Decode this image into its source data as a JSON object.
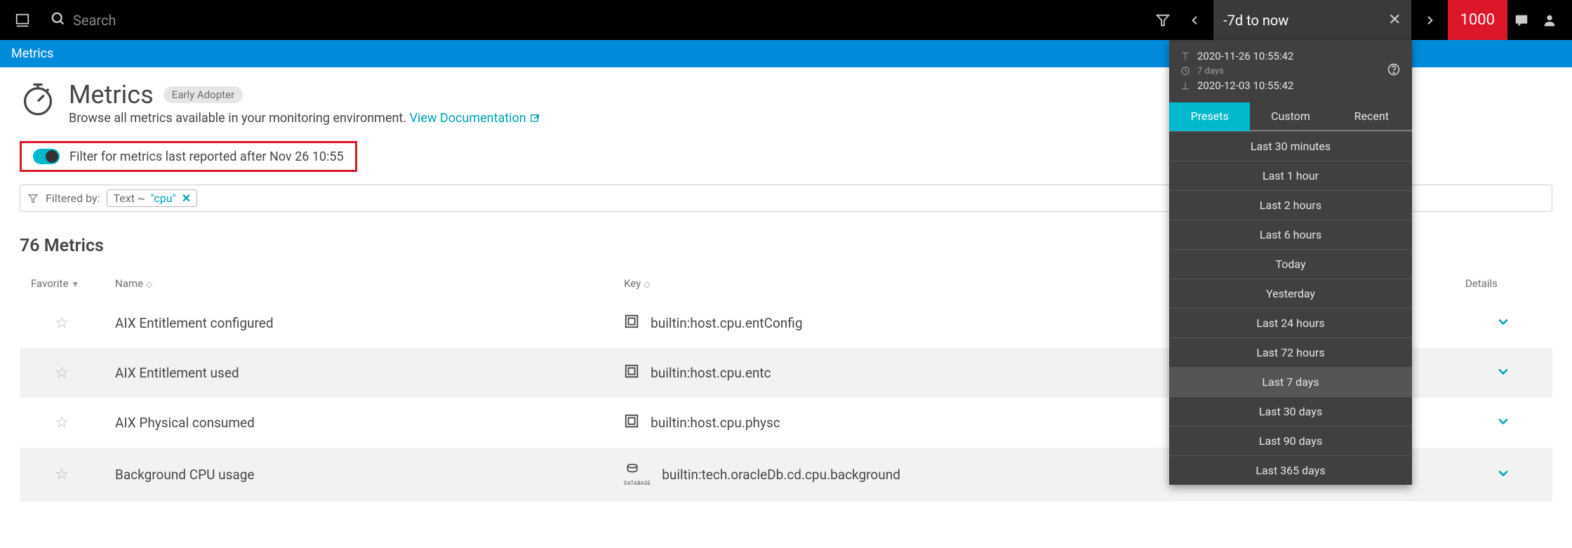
{
  "topbar": {
    "search_placeholder": "Search",
    "time_input": "-7d to now",
    "problem_count": "1000"
  },
  "breadcrumb": {
    "label": "Metrics"
  },
  "page": {
    "title": "Metrics",
    "badge": "Early Adopter",
    "subtitle_text": "Browse all metrics available in your monitoring environment. ",
    "doc_link_text": "View Documentation"
  },
  "filter_toggle": {
    "label": "Filter for metrics last reported after Nov 26 10:55"
  },
  "filter_bar": {
    "prefix": "Filtered by:",
    "chip_label": "Text ~ ",
    "chip_value": "\"cpu\""
  },
  "metrics": {
    "count_label": "76 Metrics",
    "columns": {
      "favorite": "Favorite",
      "name": "Name",
      "key": "Key",
      "details": "Details"
    },
    "rows": [
      {
        "name": "AIX Entitlement configured",
        "key": "builtin:host.cpu.entConfig",
        "icon": "host"
      },
      {
        "name": "AIX Entitlement used",
        "key": "builtin:host.cpu.entc",
        "icon": "host"
      },
      {
        "name": "AIX Physical consumed",
        "key": "builtin:host.cpu.physc",
        "icon": "host"
      },
      {
        "name": "Background CPU usage",
        "key": "builtin:tech.oracleDb.cd.cpu.background",
        "icon": "db"
      }
    ]
  },
  "time_dropdown": {
    "from": "2020-11-26 10:55:42",
    "duration": "7 days",
    "to": "2020-12-03 10:55:42",
    "tabs": {
      "presets": "Presets",
      "custom": "Custom",
      "recent": "Recent"
    },
    "presets": [
      "Last 30 minutes",
      "Last 1 hour",
      "Last 2 hours",
      "Last 6 hours",
      "Today",
      "Yesterday",
      "Last 24 hours",
      "Last 72 hours",
      "Last 7 days",
      "Last 30 days",
      "Last 90 days",
      "Last 365 days"
    ],
    "selected_preset": "Last 7 days"
  },
  "colors": {
    "brand_blue": "#008cdb",
    "teal": "#00b9cc",
    "red": "#dc172a",
    "link": "#00a1b2"
  }
}
